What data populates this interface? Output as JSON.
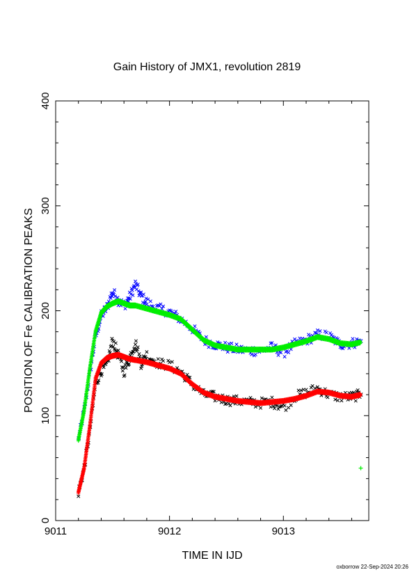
{
  "chart_data": {
    "type": "scatter",
    "title": "Gain History of JMX1, revolution 2819",
    "xlabel": "TIME IN IJD",
    "ylabel": "POSITION OF Fe CALIBRATION PEAKS",
    "xlim": [
      9011,
      9013.75
    ],
    "ylim": [
      0,
      400
    ],
    "x_ticks": [
      9011,
      9012,
      9013
    ],
    "y_ticks": [
      0,
      100,
      200,
      300,
      400
    ],
    "grid": false,
    "series": [
      {
        "marker": "x",
        "color": "#0000ff",
        "x": [
          9011.2,
          9011.25,
          9011.3,
          9011.35,
          9011.4,
          9011.45,
          9011.5,
          9011.55,
          9011.6,
          9011.65,
          9011.7,
          9011.75,
          9011.8,
          9011.9,
          9012.0,
          9012.1,
          9012.2,
          9012.3,
          9012.4,
          9012.5,
          9012.6,
          9012.7,
          9012.8,
          9012.9,
          9013.0,
          9013.1,
          9013.2,
          9013.3,
          9013.4,
          9013.5,
          9013.6,
          9013.68
        ],
        "y": [
          77,
          105,
          140,
          175,
          195,
          203,
          218,
          210,
          205,
          213,
          225,
          214,
          208,
          202,
          199,
          192,
          183,
          172,
          168,
          165,
          163,
          162,
          162,
          165,
          160,
          168,
          172,
          177,
          176,
          168,
          169,
          171
        ]
      },
      {
        "marker": "+",
        "color": "#00ee00",
        "x": [
          9011.2,
          9011.25,
          9011.3,
          9011.35,
          9011.4,
          9011.45,
          9011.5,
          9011.55,
          9011.6,
          9011.65,
          9011.7,
          9011.8,
          9011.9,
          9012.0,
          9012.1,
          9012.2,
          9012.3,
          9012.4,
          9012.5,
          9012.6,
          9012.7,
          9012.8,
          9012.9,
          9013.0,
          9013.1,
          9013.2,
          9013.3,
          9013.4,
          9013.5,
          9013.6,
          9013.68
        ],
        "y": [
          77,
          105,
          145,
          180,
          198,
          204,
          207,
          209,
          207,
          205,
          205,
          202,
          199,
          196,
          192,
          182,
          172,
          167,
          165,
          163,
          163,
          163,
          163,
          165,
          168,
          171,
          175,
          173,
          169,
          168,
          170
        ]
      },
      {
        "marker": "x",
        "color": "#000000",
        "x": [
          9011.2,
          9011.25,
          9011.3,
          9011.35,
          9011.4,
          9011.45,
          9011.5,
          9011.55,
          9011.6,
          9011.65,
          9011.7,
          9011.75,
          9011.8,
          9011.9,
          9012.0,
          9012.1,
          9012.2,
          9012.3,
          9012.4,
          9012.5,
          9012.6,
          9012.7,
          9012.8,
          9012.9,
          9013.0,
          9013.1,
          9013.2,
          9013.3,
          9013.4,
          9013.5,
          9013.6,
          9013.68
        ],
        "y": [
          27,
          50,
          85,
          130,
          143,
          148,
          172,
          158,
          142,
          155,
          170,
          150,
          158,
          150,
          148,
          142,
          130,
          120,
          118,
          115,
          114,
          113,
          112,
          113,
          108,
          118,
          122,
          126,
          120,
          118,
          118,
          120
        ]
      },
      {
        "marker": "+",
        "color": "#ff0000",
        "x": [
          9011.2,
          9011.25,
          9011.3,
          9011.35,
          9011.4,
          9011.45,
          9011.5,
          9011.55,
          9011.6,
          9011.65,
          9011.7,
          9011.8,
          9011.9,
          9012.0,
          9012.1,
          9012.2,
          9012.3,
          9012.4,
          9012.5,
          9012.6,
          9012.7,
          9012.8,
          9012.9,
          9013.0,
          9013.1,
          9013.2,
          9013.3,
          9013.4,
          9013.5,
          9013.6,
          9013.68
        ],
        "y": [
          27,
          50,
          90,
          135,
          150,
          155,
          157,
          158,
          156,
          154,
          153,
          151,
          148,
          145,
          140,
          130,
          122,
          118,
          116,
          114,
          113,
          112,
          113,
          114,
          116,
          119,
          123,
          122,
          119,
          118,
          120
        ]
      },
      {
        "marker": "+",
        "color": "#00ee00",
        "x": [
          9013.68
        ],
        "y": [
          50
        ]
      }
    ]
  },
  "footer": "oxborrow 22-Sep-2024 20:26"
}
